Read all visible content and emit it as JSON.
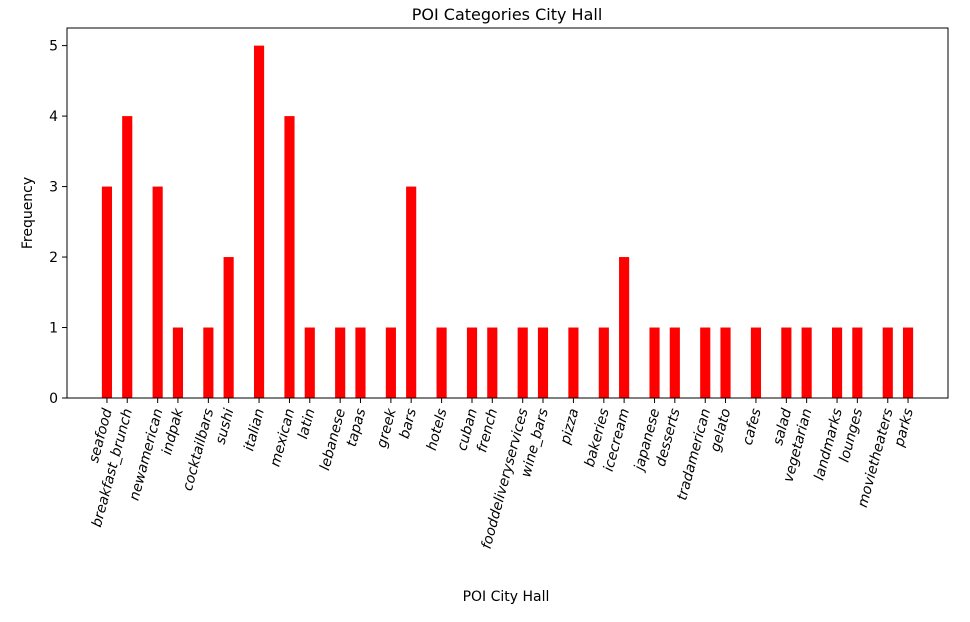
{
  "chart_data": {
    "type": "bar",
    "title": "POI Categories City Hall",
    "xlabel": "POI City Hall",
    "ylabel": "Frequency",
    "ylim": [
      0,
      5.25
    ],
    "yticks": [
      0,
      1,
      2,
      3,
      4,
      5
    ],
    "grid": false,
    "bar_color": "#ff0000",
    "categories": [
      "seafood",
      "breakfast_brunch",
      "newamerican",
      "indpak",
      "cocktailbars",
      "sushi",
      "italian",
      "mexican",
      "latin",
      "lebanese",
      "tapas",
      "greek",
      "bars",
      "hotels",
      "cuban",
      "french",
      "fooddeliveryservices",
      "wine_bars",
      "pizza",
      "bakeries",
      "icecream",
      "japanese",
      "desserts",
      "tradamerican",
      "gelato",
      "cafes",
      "salad",
      "vegetarian",
      "landmarks",
      "lounges",
      "movietheaters",
      "parks"
    ],
    "x": [
      1,
      2,
      3.5,
      4.5,
      6,
      7,
      8.5,
      10,
      11,
      12.5,
      13.5,
      15,
      16,
      17.5,
      19,
      20,
      21.5,
      22.5,
      24,
      25.5,
      26.5,
      28,
      29,
      30.5,
      31.5,
      33,
      34.5,
      35.5,
      37,
      38,
      39.5,
      40.5
    ],
    "values": [
      3,
      4,
      3,
      1,
      1,
      2,
      5,
      4,
      1,
      1,
      1,
      1,
      3,
      1,
      1,
      1,
      1,
      1,
      1,
      1,
      2,
      1,
      1,
      1,
      1,
      1,
      1,
      1,
      1,
      1,
      1,
      1
    ]
  }
}
